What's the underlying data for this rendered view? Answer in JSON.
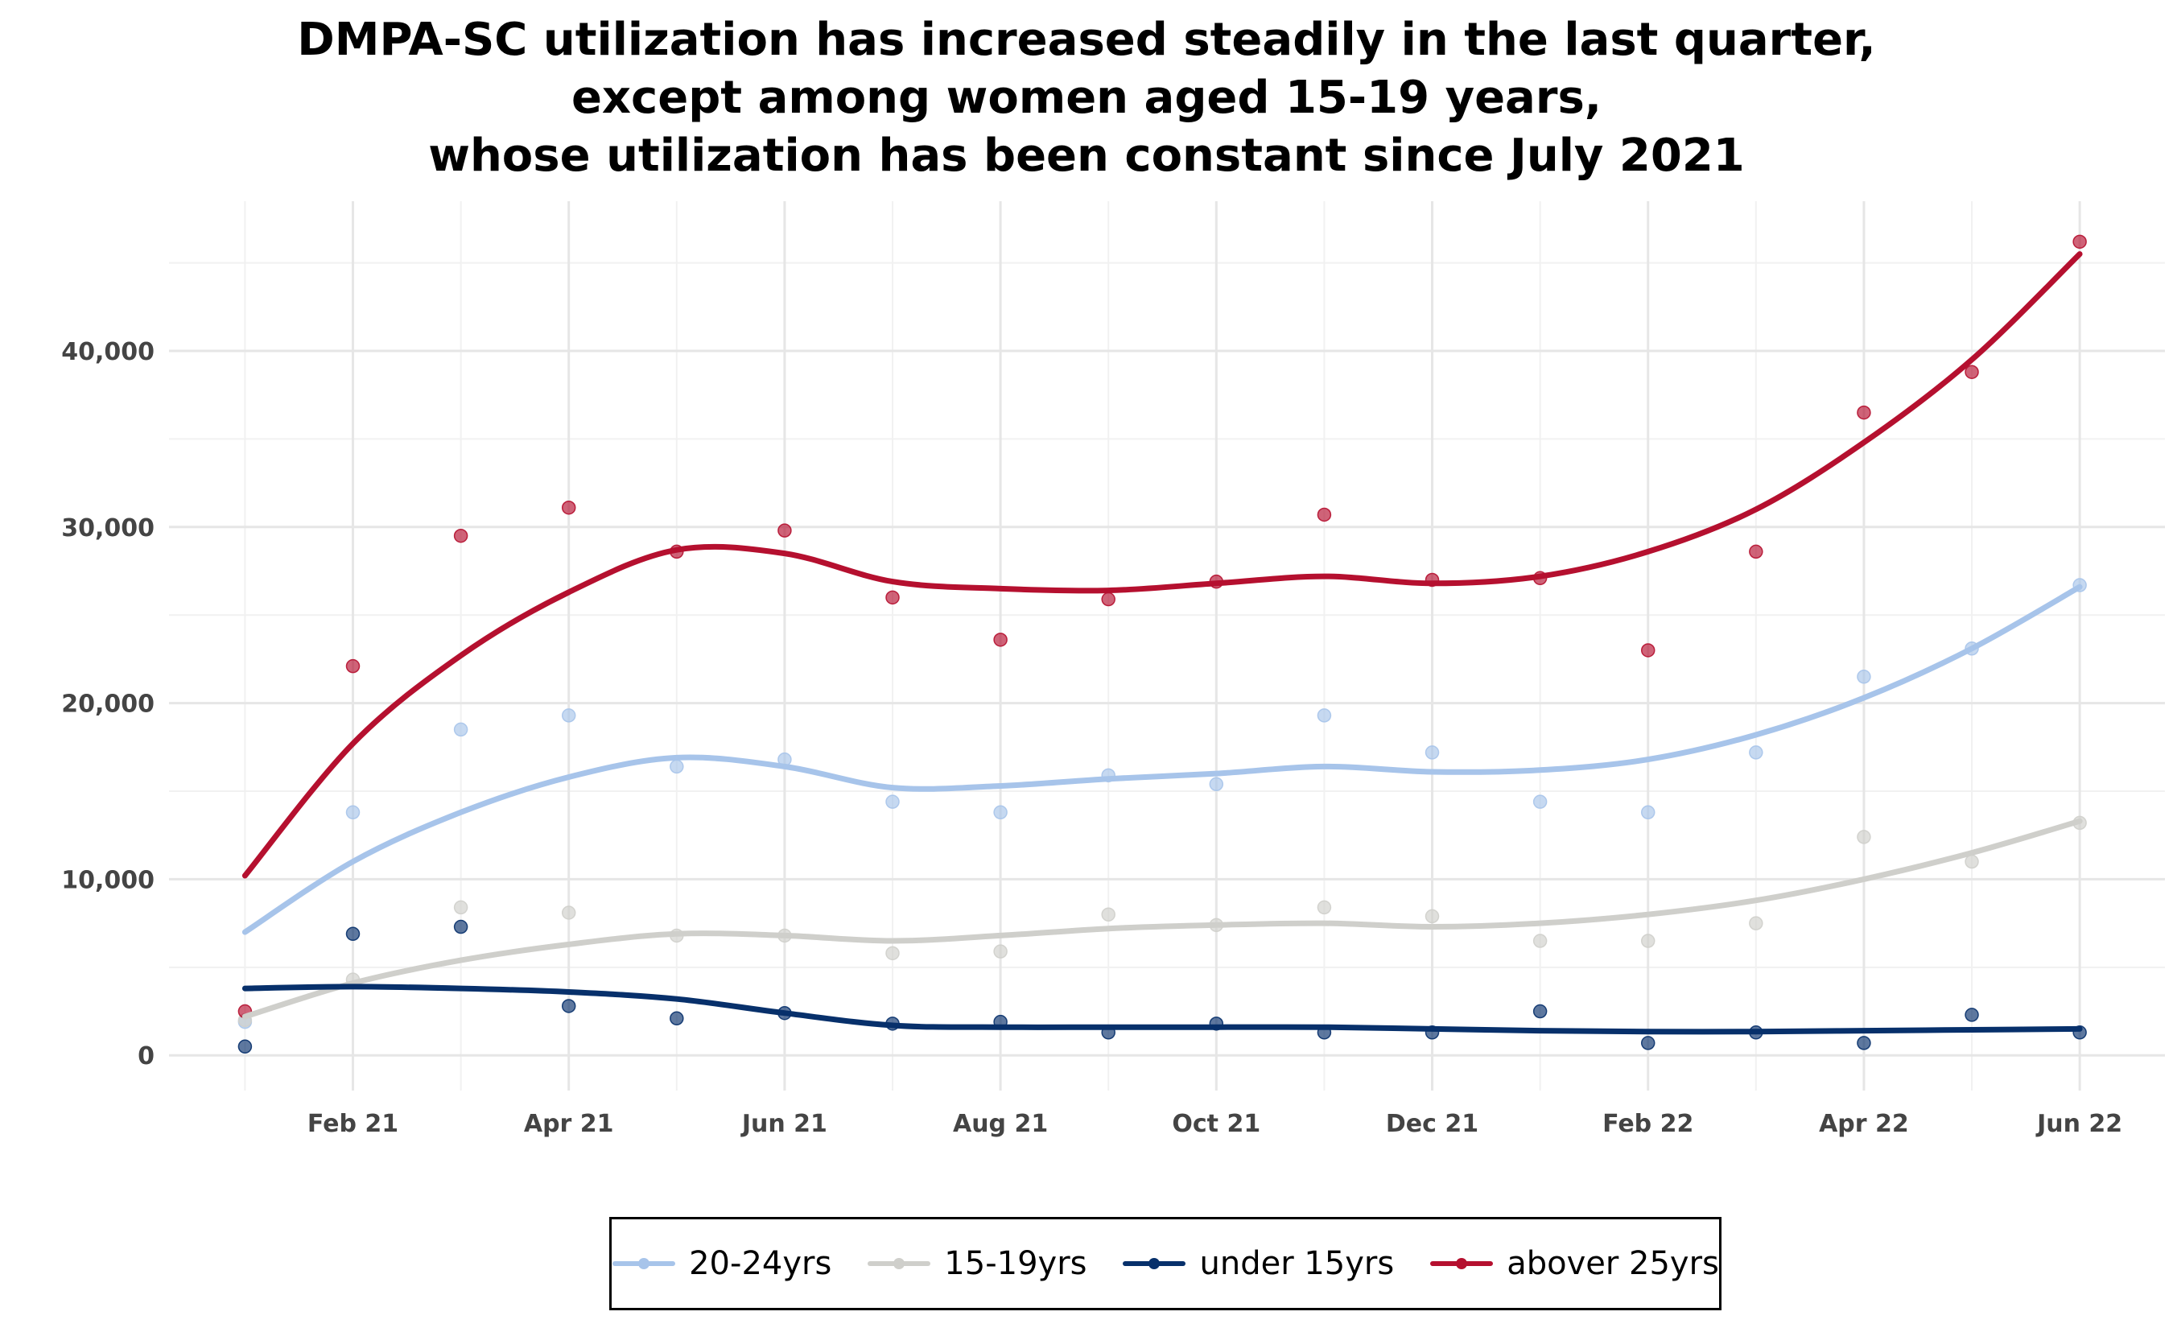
{
  "title_lines": [
    "DMPA-SC utilization has increased steadily in the last quarter,",
    "except among women aged 15-19 years,",
    "whose utilization has been constant since July 2021"
  ],
  "chart_data": {
    "type": "line",
    "title": "DMPA-SC utilization has increased steadily in the last quarter, except among women aged 15-19 years, whose utilization has been constant since July 2021",
    "xlabel": "",
    "ylabel": "",
    "x": [
      "2021-01",
      "2021-02",
      "2021-03",
      "2021-04",
      "2021-05",
      "2021-06",
      "2021-07",
      "2021-08",
      "2021-09",
      "2021-10",
      "2021-11",
      "2021-12",
      "2022-01",
      "2022-02",
      "2022-03",
      "2022-04",
      "2022-05",
      "2022-06"
    ],
    "x_ticks": [
      {
        "x": "2021-02",
        "label": "Feb 21"
      },
      {
        "x": "2021-04",
        "label": "Apr 21"
      },
      {
        "x": "2021-06",
        "label": "Jun 21"
      },
      {
        "x": "2021-08",
        "label": "Aug 21"
      },
      {
        "x": "2021-10",
        "label": "Oct 21"
      },
      {
        "x": "2021-12",
        "label": "Dec 21"
      },
      {
        "x": "2022-02",
        "label": "Feb 22"
      },
      {
        "x": "2022-04",
        "label": "Apr 22"
      },
      {
        "x": "2022-06",
        "label": "Jun 22"
      }
    ],
    "y_ticks": [
      {
        "value": 0,
        "label": "0"
      },
      {
        "value": 10000,
        "label": "10,000"
      },
      {
        "value": 20000,
        "label": "20,000"
      },
      {
        "value": 30000,
        "label": "30,000"
      },
      {
        "value": 40000,
        "label": "40,000"
      }
    ],
    "xlim": [
      "2020-12-10",
      "2022-06-25"
    ],
    "ylim": [
      -2000,
      48500
    ],
    "grid": true,
    "legend_position": "bottom",
    "series": [
      {
        "name": "20-24yrs",
        "color": "#a7c4ea",
        "values": [
          1900,
          13800,
          18500,
          19300,
          16400,
          16800,
          14400,
          13800,
          15900,
          15400,
          19300,
          17200,
          14400,
          13800,
          17200,
          21500,
          23100,
          26700
        ],
        "smooth": [
          7000,
          11000,
          13800,
          15800,
          16900,
          16400,
          15200,
          15300,
          15700,
          16000,
          16400,
          16100,
          16200,
          16800,
          18200,
          20300,
          23100,
          26600
        ]
      },
      {
        "name": "15-19yrs",
        "color": "#cfcfcb",
        "values": [
          2000,
          4300,
          8400,
          8100,
          6800,
          6800,
          5800,
          5900,
          8000,
          7400,
          8400,
          7900,
          6500,
          6500,
          7500,
          12400,
          11000,
          13200
        ],
        "smooth": [
          2200,
          4100,
          5400,
          6300,
          6900,
          6800,
          6500,
          6800,
          7200,
          7400,
          7500,
          7300,
          7500,
          8000,
          8800,
          10000,
          11500,
          13300
        ]
      },
      {
        "name": "under 15yrs",
        "color": "#07306b",
        "values": [
          500,
          6900,
          7300,
          2800,
          2100,
          2400,
          1800,
          1900,
          1300,
          1800,
          1300,
          1300,
          2500,
          700,
          1300,
          700,
          2300,
          1300
        ],
        "smooth": [
          3800,
          3900,
          3800,
          3600,
          3200,
          2400,
          1700,
          1600,
          1600,
          1600,
          1600,
          1500,
          1400,
          1350,
          1350,
          1400,
          1450,
          1500
        ]
      },
      {
        "name": "abover 25yrs",
        "color": "#b5102f",
        "values": [
          2500,
          22100,
          29500,
          31100,
          28600,
          29800,
          26000,
          23600,
          25900,
          26900,
          30700,
          27000,
          27100,
          23000,
          28600,
          36500,
          38800,
          46200
        ],
        "smooth": [
          10200,
          17700,
          22700,
          26300,
          28700,
          28500,
          26900,
          26500,
          26400,
          26800,
          27200,
          26800,
          27200,
          28600,
          31000,
          34800,
          39500,
          45500
        ]
      }
    ]
  }
}
